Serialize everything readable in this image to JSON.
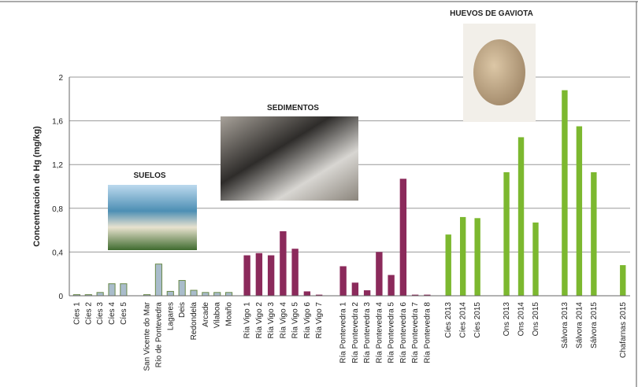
{
  "chart_data": {
    "type": "bar",
    "y_label": "Concentración de Hg (mg/kg)",
    "ylim": [
      0,
      2
    ],
    "yticks": [
      0,
      {
        "value": 0.4,
        "label": "0,4"
      },
      {
        "value": 0.8,
        "label": "0,8"
      },
      {
        "value": 1.2,
        "label": "1,2"
      },
      {
        "value": 1.6,
        "label": "1,6"
      },
      2
    ],
    "grid": true,
    "groups": [
      {
        "name": "SUELOS",
        "color": "#a9bccb",
        "categories": [
          "Cíes 1",
          "Cíes 2",
          "Cíes 3",
          "Cíes 4",
          "Cíes 5",
          null,
          "San Vicente do Mar",
          "Río de Pontevedra",
          "Lagares",
          "Deis",
          "Redondela",
          "Arcade",
          "Vilaboa",
          "Moaño"
        ],
        "values": [
          0.01,
          0.01,
          0.03,
          0.11,
          0.11,
          null,
          0.01,
          0.29,
          0.04,
          0.14,
          0.05,
          0.03,
          0.03,
          0.03
        ]
      },
      {
        "name": "SEDIMENTOS",
        "color": "#8b2a5b",
        "categories": [
          "Ría Vigo 1",
          "Ría Vigo 2",
          "Ría Vigo 3",
          "Ría Vigo 4",
          "Ría Vigo 5",
          "Ría Vigo 6",
          "Ría Vigo 7",
          null,
          "Ría Pontevedra 1",
          "Ría Pontevedra 2",
          "Ría Pontevedra 3",
          "Ría Pontevedra 4",
          "Ría Pontevedra 5",
          "Ría Pontevedra 6",
          "Ría Pontevedra 7",
          "Ría Pontevedra 8"
        ],
        "values": [
          0.37,
          0.39,
          0.37,
          0.59,
          0.43,
          0.04,
          0.01,
          null,
          0.27,
          0.12,
          0.05,
          0.4,
          0.19,
          1.07,
          0.01,
          0.01
        ]
      },
      {
        "name": "HUEVOS DE GAVIOTA",
        "color": "#7cb82f",
        "categories": [
          "Cíes 2013",
          "Cíes 2014",
          "Cíes 2015",
          null,
          "Ons 2013",
          "Ons 2014",
          "Ons 2015",
          null,
          "Sálvora 2013",
          "Sálvora 2014",
          "Sálvora 2015",
          null,
          "Chafarnas 2015"
        ],
        "values": [
          0.56,
          0.72,
          0.71,
          null,
          1.13,
          1.45,
          0.67,
          null,
          1.88,
          1.55,
          1.13,
          null,
          0.28
        ]
      }
    ]
  }
}
